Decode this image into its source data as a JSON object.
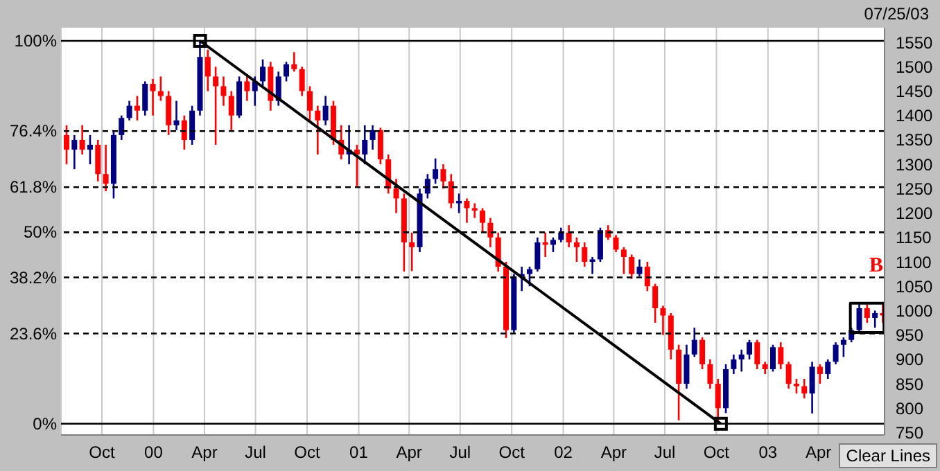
{
  "chart_data": {
    "type": "candlestick",
    "x": [
      "1999-07-30",
      "1999-08-13",
      "1999-08-27",
      "1999-09-10",
      "1999-09-24",
      "1999-10-08",
      "1999-10-22",
      "1999-11-05",
      "1999-11-19",
      "1999-12-03",
      "1999-12-17",
      "1999-12-31",
      "2000-01-14",
      "2000-01-28",
      "2000-02-11",
      "2000-02-25",
      "2000-03-10",
      "2000-03-24",
      "2000-04-07",
      "2000-04-21",
      "2000-05-05",
      "2000-05-19",
      "2000-06-02",
      "2000-06-16",
      "2000-06-30",
      "2000-07-14",
      "2000-07-28",
      "2000-08-11",
      "2000-08-25",
      "2000-09-08",
      "2000-09-22",
      "2000-10-06",
      "2000-10-20",
      "2000-11-03",
      "2000-11-17",
      "2000-12-01",
      "2000-12-15",
      "2000-12-29",
      "2001-01-12",
      "2001-01-26",
      "2001-02-09",
      "2001-02-23",
      "2001-03-09",
      "2001-03-23",
      "2001-04-06",
      "2001-04-20",
      "2001-05-04",
      "2001-05-18",
      "2001-06-01",
      "2001-06-15",
      "2001-06-29",
      "2001-07-13",
      "2001-07-27",
      "2001-08-10",
      "2001-08-24",
      "2001-09-07",
      "2001-09-21",
      "2001-10-05",
      "2001-10-19",
      "2001-11-02",
      "2001-11-16",
      "2001-11-30",
      "2001-12-14",
      "2001-12-28",
      "2002-01-11",
      "2002-01-25",
      "2002-02-08",
      "2002-02-22",
      "2002-03-08",
      "2002-03-22",
      "2002-04-05",
      "2002-04-19",
      "2002-05-03",
      "2002-05-17",
      "2002-05-31",
      "2002-06-14",
      "2002-06-28",
      "2002-07-12",
      "2002-07-26",
      "2002-08-09",
      "2002-08-23",
      "2002-09-06",
      "2002-09-20",
      "2002-10-04",
      "2002-10-18",
      "2002-11-01",
      "2002-11-15",
      "2002-11-29",
      "2002-12-13",
      "2002-12-27",
      "2003-01-10",
      "2003-01-24",
      "2003-02-07",
      "2003-02-21",
      "2003-03-07",
      "2003-03-21",
      "2003-04-04",
      "2003-04-18",
      "2003-05-02",
      "2003-05-16",
      "2003-05-30",
      "2003-06-13",
      "2003-06-27",
      "2003-07-11",
      "2003-07-25"
    ],
    "ohlc": [
      [
        1360,
        1380,
        1300,
        1330
      ],
      [
        1330,
        1360,
        1290,
        1350
      ],
      [
        1350,
        1380,
        1320,
        1330
      ],
      [
        1330,
        1360,
        1300,
        1340
      ],
      [
        1340,
        1350,
        1265,
        1280
      ],
      [
        1280,
        1340,
        1245,
        1260
      ],
      [
        1260,
        1370,
        1230,
        1360
      ],
      [
        1360,
        1400,
        1350,
        1395
      ],
      [
        1395,
        1430,
        1390,
        1420
      ],
      [
        1420,
        1440,
        1390,
        1410
      ],
      [
        1410,
        1470,
        1400,
        1465
      ],
      [
        1465,
        1475,
        1400,
        1450
      ],
      [
        1450,
        1480,
        1430,
        1440
      ],
      [
        1440,
        1450,
        1360,
        1380
      ],
      [
        1380,
        1430,
        1370,
        1390
      ],
      [
        1390,
        1400,
        1330,
        1350
      ],
      [
        1350,
        1420,
        1340,
        1410
      ],
      [
        1410,
        1553,
        1400,
        1520
      ],
      [
        1520,
        1535,
        1450,
        1480
      ],
      [
        1480,
        1500,
        1340,
        1460
      ],
      [
        1460,
        1480,
        1420,
        1440
      ],
      [
        1440,
        1450,
        1370,
        1400
      ],
      [
        1400,
        1480,
        1395,
        1470
      ],
      [
        1470,
        1485,
        1430,
        1450
      ],
      [
        1450,
        1480,
        1420,
        1470
      ],
      [
        1470,
        1515,
        1460,
        1500
      ],
      [
        1500,
        1510,
        1410,
        1430
      ],
      [
        1430,
        1490,
        1420,
        1480
      ],
      [
        1480,
        1510,
        1470,
        1505
      ],
      [
        1505,
        1530,
        1490,
        1495
      ],
      [
        1495,
        1500,
        1440,
        1450
      ],
      [
        1450,
        1460,
        1390,
        1410
      ],
      [
        1410,
        1420,
        1320,
        1390
      ],
      [
        1390,
        1440,
        1380,
        1420
      ],
      [
        1420,
        1430,
        1340,
        1350
      ],
      [
        1350,
        1380,
        1310,
        1320
      ],
      [
        1320,
        1380,
        1300,
        1330
      ],
      [
        1330,
        1340,
        1255,
        1320
      ],
      [
        1320,
        1380,
        1300,
        1350
      ],
      [
        1350,
        1380,
        1330,
        1370
      ],
      [
        1370,
        1375,
        1300,
        1310
      ],
      [
        1310,
        1320,
        1240,
        1250
      ],
      [
        1250,
        1270,
        1200,
        1230
      ],
      [
        1230,
        1240,
        1080,
        1140
      ],
      [
        1140,
        1160,
        1081,
        1130
      ],
      [
        1130,
        1250,
        1120,
        1240
      ],
      [
        1240,
        1280,
        1230,
        1270
      ],
      [
        1270,
        1312,
        1260,
        1290
      ],
      [
        1290,
        1300,
        1250,
        1265
      ],
      [
        1265,
        1280,
        1210,
        1220
      ],
      [
        1220,
        1240,
        1200,
        1225
      ],
      [
        1225,
        1230,
        1180,
        1210
      ],
      [
        1210,
        1220,
        1190,
        1205
      ],
      [
        1205,
        1210,
        1160,
        1180
      ],
      [
        1180,
        1190,
        1130,
        1150
      ],
      [
        1150,
        1160,
        1080,
        1090
      ],
      [
        1090,
        1100,
        944,
        960
      ],
      [
        960,
        1075,
        955,
        1070
      ],
      [
        1070,
        1090,
        1040,
        1075
      ],
      [
        1075,
        1090,
        1050,
        1085
      ],
      [
        1085,
        1150,
        1080,
        1140
      ],
      [
        1140,
        1160,
        1110,
        1135
      ],
      [
        1135,
        1150,
        1120,
        1145
      ],
      [
        1145,
        1170,
        1140,
        1160
      ],
      [
        1160,
        1175,
        1130,
        1140
      ],
      [
        1140,
        1150,
        1100,
        1130
      ],
      [
        1130,
        1140,
        1090,
        1100
      ],
      [
        1100,
        1110,
        1075,
        1105
      ],
      [
        1105,
        1170,
        1100,
        1165
      ],
      [
        1165,
        1175,
        1145,
        1150
      ],
      [
        1150,
        1155,
        1120,
        1125
      ],
      [
        1125,
        1130,
        1075,
        1110
      ],
      [
        1110,
        1115,
        1065,
        1075
      ],
      [
        1075,
        1105,
        1070,
        1090
      ],
      [
        1090,
        1100,
        1040,
        1050
      ],
      [
        1050,
        1055,
        975,
        1005
      ],
      [
        1005,
        1010,
        950,
        990
      ],
      [
        990,
        995,
        900,
        920
      ],
      [
        920,
        930,
        775,
        850
      ],
      [
        850,
        930,
        840,
        910
      ],
      [
        910,
        965,
        905,
        940
      ],
      [
        940,
        945,
        880,
        890
      ],
      [
        890,
        900,
        840,
        850
      ],
      [
        850,
        860,
        768,
        800
      ],
      [
        800,
        890,
        790,
        880
      ],
      [
        880,
        910,
        870,
        900
      ],
      [
        900,
        920,
        875,
        910
      ],
      [
        910,
        940,
        900,
        935
      ],
      [
        935,
        940,
        880,
        890
      ],
      [
        890,
        895,
        870,
        880
      ],
      [
        880,
        930,
        875,
        925
      ],
      [
        925,
        935,
        880,
        890
      ],
      [
        890,
        895,
        840,
        850
      ],
      [
        850,
        860,
        830,
        845
      ],
      [
        845,
        860,
        820,
        830
      ],
      [
        830,
        895,
        789,
        885
      ],
      [
        885,
        890,
        850,
        870
      ],
      [
        870,
        900,
        860,
        895
      ],
      [
        895,
        935,
        890,
        930
      ],
      [
        930,
        945,
        905,
        940
      ],
      [
        940,
        965,
        935,
        960
      ],
      [
        960,
        1015,
        955,
        1005
      ],
      [
        1005,
        1015,
        975,
        985
      ],
      [
        985,
        1000,
        965,
        995
      ],
      [
        995,
        1015,
        975,
        990
      ]
    ],
    "colors": [
      "#ff0000",
      "#000080",
      "#ff0000",
      "#000080",
      "#ff0000",
      "#ff0000",
      "#000080",
      "#000080",
      "#000080",
      "#ff0000",
      "#000080",
      "#ff0000",
      "#ff0000",
      "#ff0000",
      "#000080",
      "#ff0000",
      "#000080",
      "#000080",
      "#ff0000",
      "#ff0000",
      "#ff0000",
      "#ff0000",
      "#000080",
      "#ff0000",
      "#000080",
      "#000080",
      "#ff0000",
      "#000080",
      "#000080",
      "#ff0000",
      "#ff0000",
      "#ff0000",
      "#ff0000",
      "#000080",
      "#ff0000",
      "#ff0000",
      "#000080",
      "#ff0000",
      "#000080",
      "#000080",
      "#ff0000",
      "#ff0000",
      "#ff0000",
      "#ff0000",
      "#ff0000",
      "#000080",
      "#000080",
      "#000080",
      "#ff0000",
      "#ff0000",
      "#000080",
      "#ff0000",
      "#ff0000",
      "#ff0000",
      "#ff0000",
      "#ff0000",
      "#ff0000",
      "#000080",
      "#000080",
      "#000080",
      "#000080",
      "#ff0000",
      "#000080",
      "#000080",
      "#ff0000",
      "#ff0000",
      "#ff0000",
      "#000080",
      "#000080",
      "#ff0000",
      "#ff0000",
      "#ff0000",
      "#ff0000",
      "#000080",
      "#ff0000",
      "#ff0000",
      "#ff0000",
      "#ff0000",
      "#ff0000",
      "#000080",
      "#000080",
      "#ff0000",
      "#ff0000",
      "#ff0000",
      "#000080",
      "#000080",
      "#000080",
      "#000080",
      "#ff0000",
      "#ff0000",
      "#000080",
      "#ff0000",
      "#ff0000",
      "#ff0000",
      "#ff0000",
      "#000080",
      "#ff0000",
      "#000080",
      "#000080",
      "#000080",
      "#000080",
      "#000080",
      "#ff0000",
      "#000080",
      "#ff0000"
    ],
    "series": [
      {
        "type": "line",
        "color": "#000000",
        "marker": "square",
        "x": [
          "2000-03-24",
          "2002-10-09"
        ],
        "values": [
          1553,
          768
        ]
      },
      {
        "type": "line",
        "color": "#000000",
        "marker": "none",
        "x": [
          "2003-05-28",
          "2003-05-28",
          "2003-07-27"
        ],
        "values": [
          955,
          1015,
          1015
        ]
      },
      {
        "type": "line",
        "color": "#000000",
        "marker": "none",
        "x": [
          "2003-07-27",
          "2003-07-27",
          "2003-05-28"
        ],
        "values": [
          1015,
          955,
          955
        ]
      }
    ],
    "xlim": [
      "1999-07-20",
      "2003-07-28"
    ],
    "xticks": [
      {
        "value": "1999-10-01",
        "label": "Oct"
      },
      {
        "value": "2000-01-01",
        "label": "00"
      },
      {
        "value": "2000-04-01",
        "label": "Apr"
      },
      {
        "value": "2000-07-01",
        "label": "Jul"
      },
      {
        "value": "2000-10-01",
        "label": "Oct"
      },
      {
        "value": "2001-01-01",
        "label": "01"
      },
      {
        "value": "2001-04-01",
        "label": "Apr"
      },
      {
        "value": "2001-07-01",
        "label": "Jul"
      },
      {
        "value": "2001-10-01",
        "label": "Oct"
      },
      {
        "value": "2002-01-01",
        "label": "02"
      },
      {
        "value": "2002-04-01",
        "label": "Apr"
      },
      {
        "value": "2002-07-01",
        "label": "Jul"
      },
      {
        "value": "2002-10-01",
        "label": "Oct"
      },
      {
        "value": "2003-01-01",
        "label": "03"
      },
      {
        "value": "2003-04-01",
        "label": "Apr"
      }
    ],
    "ylim": [
      745,
      1580
    ],
    "yticks": [
      750,
      800,
      850,
      900,
      950,
      1000,
      1050,
      1100,
      1150,
      1200,
      1250,
      1300,
      1350,
      1400,
      1450,
      1500,
      1550
    ],
    "grid": true,
    "ref_lines": [
      {
        "axis": "y",
        "value": 1553,
        "color": "#000000",
        "line_style": "solid"
      },
      {
        "axis": "y",
        "value": 1368,
        "color": "#000000",
        "line_style": "dashed"
      },
      {
        "axis": "y",
        "value": 1253,
        "color": "#000000",
        "line_style": "dashed"
      },
      {
        "axis": "y",
        "value": 1160.5,
        "color": "#000000",
        "line_style": "dashed"
      },
      {
        "axis": "y",
        "value": 1068,
        "color": "#000000",
        "line_style": "dashed"
      },
      {
        "axis": "y",
        "value": 953,
        "color": "#000000",
        "line_style": "dashed"
      },
      {
        "axis": "y",
        "value": 768,
        "color": "#000000",
        "line_style": "solid"
      }
    ],
    "annotations": [
      "07/25/03",
      "Clear Lines",
      "B",
      "100%",
      "76.4%",
      "61.8%",
      "50%",
      "38.2%",
      "23.6%",
      "0%"
    ]
  }
}
